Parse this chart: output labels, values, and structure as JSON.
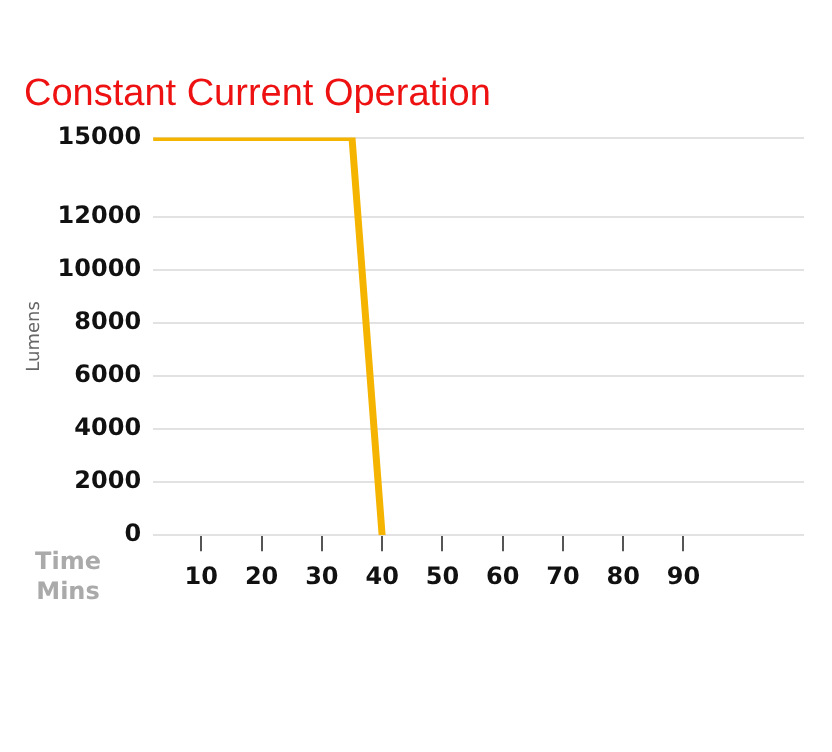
{
  "chart_data": {
    "type": "line",
    "title": "Constant Current Operation",
    "xlabel": "Time Mins",
    "ylabel": "Lumens",
    "x": [
      2,
      35,
      40
    ],
    "series": [
      {
        "color": "#f5b400",
        "values": [
          15000,
          15000,
          0
        ]
      }
    ],
    "xlim": [
      2,
      110
    ],
    "xticks": [
      10,
      20,
      30,
      40,
      50,
      60,
      70,
      80,
      90
    ],
    "ylim": [
      0,
      15000
    ],
    "yticks": [
      0,
      2000,
      4000,
      6000,
      8000,
      10000,
      12000,
      15000
    ],
    "grid": "y",
    "legend": false,
    "marker": "none",
    "line_style": "solid"
  }
}
